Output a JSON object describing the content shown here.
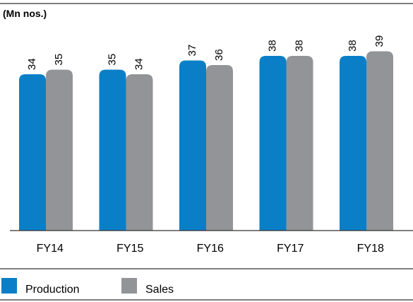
{
  "chart_data": {
    "type": "bar",
    "unit_label": "(Mn nos.)",
    "categories": [
      "FY14",
      "FY15",
      "FY16",
      "FY17",
      "FY18"
    ],
    "series": [
      {
        "name": "Production",
        "color": "#0a7fc7",
        "values": [
          34,
          35,
          37,
          38,
          38
        ]
      },
      {
        "name": "Sales",
        "color": "#929497",
        "values": [
          35,
          34,
          36,
          38,
          39
        ]
      }
    ],
    "ylim": [
      0,
      44
    ],
    "grid": false,
    "legend_position": "bottom-left"
  }
}
